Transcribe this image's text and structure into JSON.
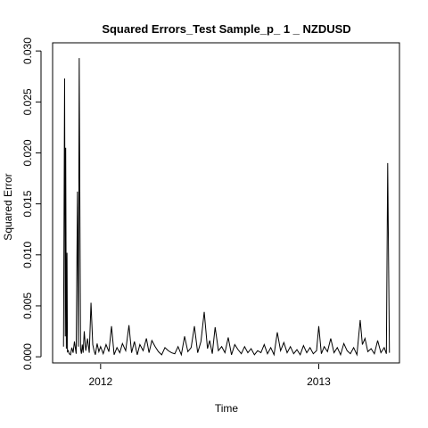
{
  "chart_data": {
    "type": "line",
    "title": "Squared Errors_Test Sample_p_ 1 _ NZDUSD",
    "xlabel": "Time",
    "ylabel": "Squared Error",
    "xlim": [
      2011.78,
      2013.37
    ],
    "ylim": [
      -0.0006,
      0.0308
    ],
    "x_ticks": [
      {
        "value": 2012,
        "label": "2012"
      },
      {
        "value": 2013,
        "label": "2013"
      }
    ],
    "y_ticks": [
      {
        "value": 0.0,
        "label": "0.000"
      },
      {
        "value": 0.005,
        "label": "0.005"
      },
      {
        "value": 0.01,
        "label": "0.010"
      },
      {
        "value": 0.015,
        "label": "0.015"
      },
      {
        "value": 0.02,
        "label": "0.020"
      },
      {
        "value": 0.025,
        "label": "0.025"
      },
      {
        "value": 0.03,
        "label": "0.030"
      }
    ],
    "grid": false,
    "series": [
      {
        "color": "#000000",
        "x": [
          2011.83,
          2011.835,
          2011.838,
          2011.84,
          2011.843,
          2011.846,
          2011.848,
          2011.852,
          2011.856,
          2011.862,
          2011.868,
          2011.874,
          2011.88,
          2011.888,
          2011.894,
          2011.898,
          2011.902,
          2011.905,
          2011.908,
          2011.912,
          2011.916,
          2011.92,
          2011.925,
          2011.932,
          2011.94,
          2011.948,
          2011.956,
          2011.964,
          2011.97,
          2011.976,
          2011.984,
          2011.992,
          2012.0,
          2012.012,
          2012.025,
          2012.038,
          2012.05,
          2012.062,
          2012.075,
          2012.088,
          2012.1,
          2012.115,
          2012.13,
          2012.142,
          2012.155,
          2012.168,
          2012.18,
          2012.195,
          2012.21,
          2012.222,
          2012.235,
          2012.25,
          2012.265,
          2012.28,
          2012.295,
          2012.31,
          2012.325,
          2012.34,
          2012.355,
          2012.37,
          2012.385,
          2012.4,
          2012.415,
          2012.43,
          2012.445,
          2012.46,
          2012.475,
          2012.49,
          2012.5,
          2012.512,
          2012.525,
          2012.54,
          2012.555,
          2012.57,
          2012.585,
          2012.6,
          2012.615,
          2012.63,
          2012.645,
          2012.66,
          2012.675,
          2012.69,
          2012.705,
          2012.72,
          2012.735,
          2012.75,
          2012.765,
          2012.78,
          2012.795,
          2012.81,
          2012.825,
          2012.84,
          2012.855,
          2012.87,
          2012.885,
          2012.9,
          2012.915,
          2012.93,
          2012.945,
          2012.96,
          2012.975,
          2012.99,
          2013.0,
          2013.012,
          2013.025,
          2013.04,
          2013.055,
          2013.07,
          2013.085,
          2013.1,
          2013.115,
          2013.13,
          2013.145,
          2013.16,
          2013.175,
          2013.19,
          2013.2,
          2013.212,
          2013.225,
          2013.24,
          2013.255,
          2013.27,
          2013.285,
          2013.3,
          2013.31,
          2013.316,
          2013.32,
          2013.324
        ],
        "values": [
          0.001,
          0.0273,
          0.002,
          0.0205,
          0.0008,
          0.0102,
          0.0005,
          0.0006,
          0.0003,
          0.0002,
          0.0009,
          0.0004,
          0.0015,
          0.0003,
          0.0162,
          0.001,
          0.0293,
          0.015,
          0.0008,
          0.0003,
          0.0012,
          0.0004,
          0.0025,
          0.0006,
          0.0018,
          0.0004,
          0.0053,
          0.0012,
          0.0006,
          0.0002,
          0.0013,
          0.0005,
          0.001,
          0.0003,
          0.0012,
          0.0005,
          0.003,
          0.0002,
          0.0009,
          0.0004,
          0.0013,
          0.0006,
          0.0031,
          0.0004,
          0.0015,
          0.0002,
          0.0012,
          0.0006,
          0.0018,
          0.0004,
          0.0016,
          0.001,
          0.0005,
          0.0002,
          0.0009,
          0.0006,
          0.0004,
          0.0003,
          0.001,
          0.0002,
          0.002,
          0.0005,
          0.0009,
          0.003,
          0.0004,
          0.0015,
          0.0044,
          0.0008,
          0.0016,
          0.0003,
          0.0029,
          0.0006,
          0.001,
          0.0004,
          0.0019,
          0.0002,
          0.0012,
          0.0007,
          0.0003,
          0.001,
          0.0004,
          0.0008,
          0.0002,
          0.0006,
          0.0004,
          0.0012,
          0.0003,
          0.0009,
          0.0002,
          0.0024,
          0.0006,
          0.0014,
          0.0004,
          0.001,
          0.0003,
          0.0007,
          0.0002,
          0.0011,
          0.0004,
          0.0009,
          0.0003,
          0.0006,
          0.003,
          0.0003,
          0.001,
          0.0005,
          0.0018,
          0.0004,
          0.0009,
          0.0002,
          0.0013,
          0.0006,
          0.0003,
          0.0009,
          0.0002,
          0.0036,
          0.0012,
          0.0018,
          0.0005,
          0.0008,
          0.0003,
          0.0016,
          0.0004,
          0.0009,
          0.0003,
          0.019,
          0.0095,
          0.0004
        ]
      }
    ]
  }
}
